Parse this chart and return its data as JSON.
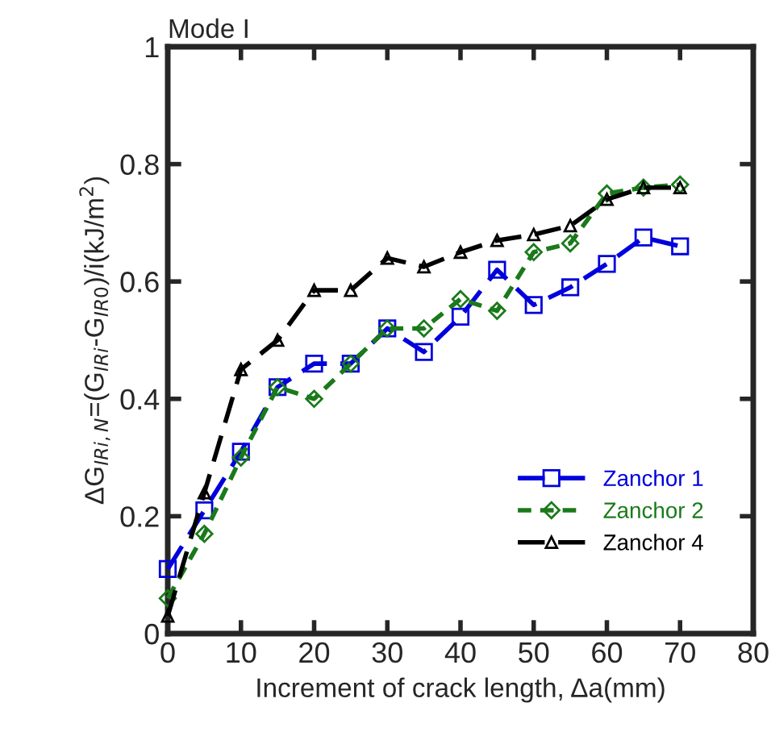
{
  "chart_data": {
    "type": "line",
    "title": "Mode I",
    "xlabel": "Increment of crack length, Δa(mm)",
    "ylabel": "ΔG$_{IRi,N}$=(G$_{IRi}$-G$_{IR0}$)/i(kJ/m$^{2}$)",
    "x": [
      0,
      5,
      10,
      15,
      20,
      25,
      30,
      35,
      40,
      45,
      50,
      55,
      60,
      65,
      70
    ],
    "series": [
      {
        "name": "Zanchor 1",
        "color": "#0000dd",
        "marker": "square",
        "line_style": "dashed",
        "values": [
          0.11,
          0.21,
          0.31,
          0.42,
          0.46,
          0.46,
          0.52,
          0.48,
          0.54,
          0.62,
          0.56,
          0.59,
          0.63,
          0.675,
          0.66
        ]
      },
      {
        "name": "Zanchor 2",
        "color": "#1a7a1a",
        "marker": "diamond",
        "line_style": "dotted",
        "values": [
          0.06,
          0.17,
          0.3,
          0.42,
          0.4,
          0.46,
          0.52,
          0.52,
          0.57,
          0.55,
          0.65,
          0.665,
          0.75,
          0.76,
          0.765
        ]
      },
      {
        "name": "Zanchor 4",
        "color": "#000000",
        "marker": "triangle",
        "line_style": "dashed",
        "values": [
          0.03,
          0.24,
          0.45,
          0.5,
          0.585,
          0.585,
          0.64,
          0.625,
          0.65,
          0.67,
          0.68,
          0.695,
          0.74,
          0.76,
          0.76
        ]
      }
    ],
    "xlim": [
      0,
      80
    ],
    "xticks": [
      0,
      10,
      20,
      30,
      40,
      50,
      60,
      70,
      80
    ],
    "ylim": [
      0,
      1
    ],
    "yticks": [
      0,
      0.2,
      0.4,
      0.6,
      0.8,
      1
    ],
    "grid": false,
    "legend": "bottom right"
  }
}
